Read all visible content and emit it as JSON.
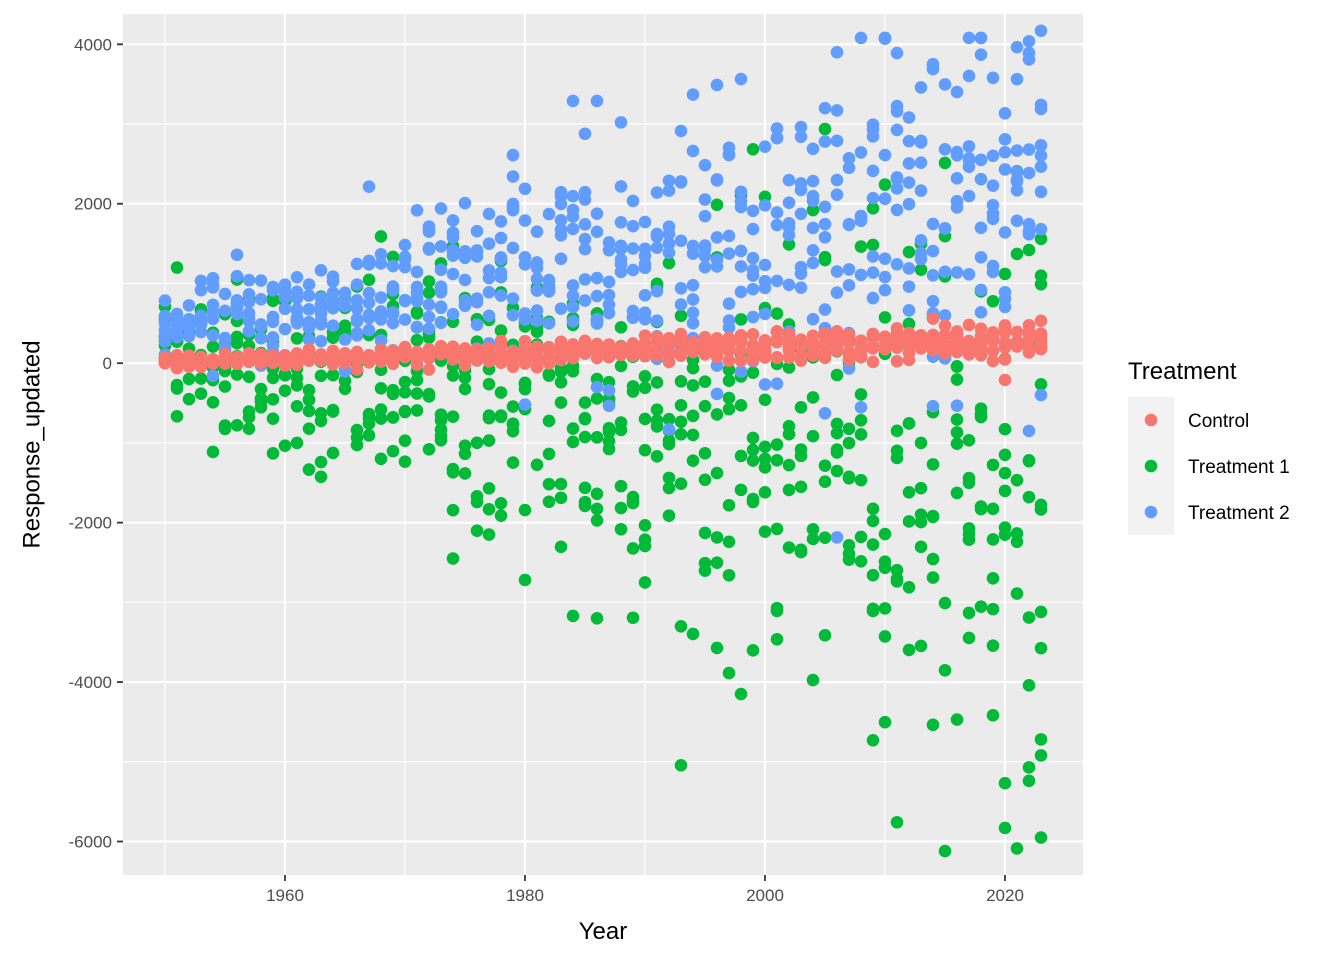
{
  "chart_data": {
    "type": "scatter",
    "title": "",
    "xlabel": "Year",
    "ylabel": "Response_updated",
    "xlim": [
      1946.5,
      2026.5
    ],
    "ylim": [
      -6420,
      4380
    ],
    "x_ticks": [
      1960,
      1980,
      2000,
      2020
    ],
    "x_tick_labels": [
      "1960",
      "1980",
      "2000",
      "2020"
    ],
    "y_ticks": [
      -6000,
      -4000,
      -2000,
      0,
      2000,
      4000
    ],
    "y_tick_labels": [
      "-6000",
      "-4000",
      "-2000",
      "0",
      "2000",
      "4000"
    ],
    "x_range_years": [
      1950,
      2023
    ],
    "background_color": "#EBEBEB",
    "grid": true,
    "grid_color": "#FFFFFF",
    "legend": {
      "title": "Treatment",
      "position": "right",
      "entries": [
        {
          "name": "Control",
          "color": "#F8766D"
        },
        {
          "name": "Treatment 1",
          "color": "#00BA38"
        },
        {
          "name": "Treatment 2",
          "color": "#619CFF"
        }
      ]
    },
    "series": [
      {
        "name": "Control",
        "color": "#F8766D",
        "points_per_year": 8,
        "mean_start": 20,
        "mean_end": 280,
        "sd_start": 40,
        "sd_end": 110,
        "highlights": [
          [
            1973,
            170
          ],
          [
            1985,
            280
          ],
          [
            2014,
            560
          ],
          [
            2020,
            -210
          ],
          [
            2017,
            480
          ]
        ]
      },
      {
        "name": "Treatment 1",
        "color": "#00BA38",
        "points_per_year": 8,
        "mean_start": 180,
        "mean_end": -1500,
        "sd_start": 380,
        "sd_end": 1800,
        "highlights": [
          [
            1951,
            1200
          ],
          [
            1963,
            -1240
          ],
          [
            1974,
            -2450
          ],
          [
            1977,
            -2150
          ],
          [
            1984,
            -3170
          ],
          [
            1986,
            -3200
          ],
          [
            1993,
            -3300
          ],
          [
            1998,
            -4150
          ],
          [
            2009,
            -4730
          ],
          [
            2016,
            -4470
          ],
          [
            2020,
            -5830
          ],
          [
            2022,
            -5070
          ],
          [
            2023,
            -5950
          ],
          [
            2023,
            -4920
          ],
          [
            2010,
            2240
          ],
          [
            2023,
            1560
          ],
          [
            2020,
            1120
          ]
        ]
      },
      {
        "name": "Treatment 2",
        "color": "#619CFF",
        "points_per_year": 8,
        "mean_start": 400,
        "mean_end": 2100,
        "sd_start": 200,
        "sd_end": 1200,
        "highlights": [
          [
            1956,
            1360
          ],
          [
            1973,
            1940
          ],
          [
            1979,
            2610
          ],
          [
            1984,
            3290
          ],
          [
            1986,
            3290
          ],
          [
            1994,
            3370
          ],
          [
            1996,
            3490
          ],
          [
            2006,
            3900
          ],
          [
            2010,
            4070
          ],
          [
            2011,
            3890
          ],
          [
            2018,
            3870
          ],
          [
            2023,
            4170
          ],
          [
            2014,
            -540
          ],
          [
            2022,
            -850
          ]
        ]
      }
    ]
  }
}
